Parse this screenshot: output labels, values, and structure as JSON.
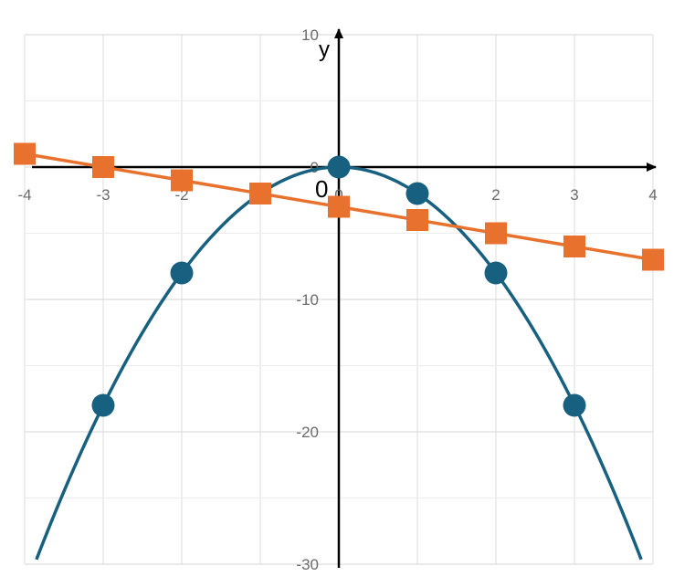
{
  "chart_data": {
    "type": "scatter",
    "xlim": [
      -4,
      4
    ],
    "ylim": [
      -30,
      10
    ],
    "x_ticks": [
      "-4",
      "-3",
      "-2",
      "-1",
      "0",
      "1",
      "2",
      "3",
      "4"
    ],
    "y_ticks": [
      "10",
      "0",
      "-10",
      "-20",
      "-30"
    ],
    "ylabel": "y",
    "origin_label": "0",
    "grid": true,
    "series": [
      {
        "color": "#17607f",
        "marker": "circle",
        "line": "smooth-curve",
        "points": [
          {
            "x": -3,
            "y": -18
          },
          {
            "x": -2,
            "y": -8
          },
          {
            "x": 0,
            "y": 0
          },
          {
            "x": 1,
            "y": -2
          },
          {
            "x": 2,
            "y": -8
          },
          {
            "x": 3,
            "y": -18
          }
        ],
        "curve_x_range": [
          -3.85,
          3.85
        ]
      },
      {
        "color": "#e9712e",
        "marker": "square",
        "line": "straight",
        "points": [
          {
            "x": -4,
            "y": 1
          },
          {
            "x": -3,
            "y": 0
          },
          {
            "x": -2,
            "y": -1
          },
          {
            "x": -1,
            "y": -2
          },
          {
            "x": 0,
            "y": -3
          },
          {
            "x": 1,
            "y": -4
          },
          {
            "x": 2,
            "y": -5
          },
          {
            "x": 3,
            "y": -6
          },
          {
            "x": 4,
            "y": -7
          }
        ]
      }
    ]
  }
}
